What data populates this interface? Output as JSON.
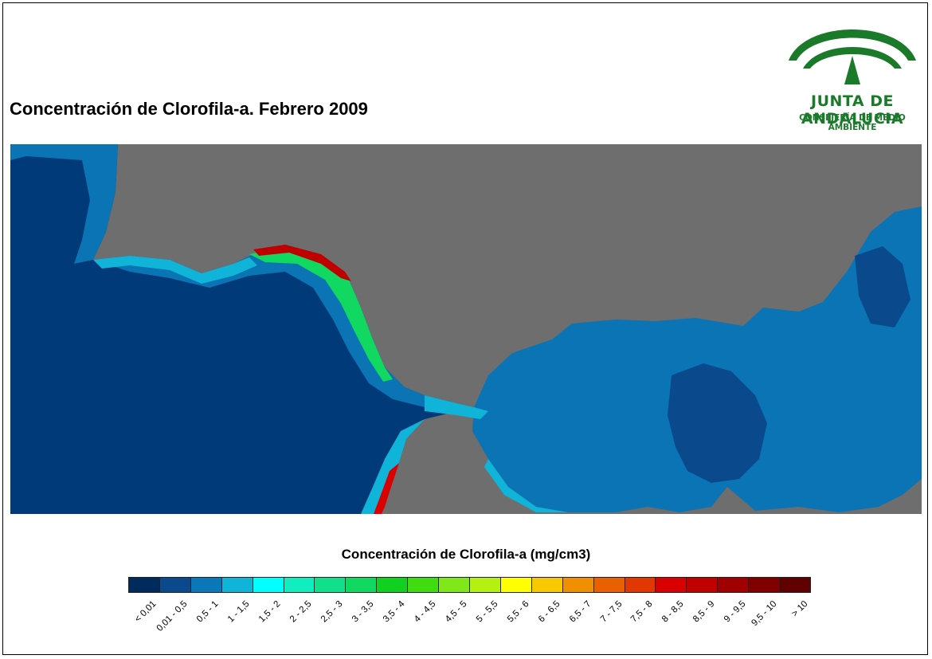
{
  "title": "Concentración de Clorofila-a. Febrero 2009",
  "logo": {
    "line1": "JUNTA DE ANDALUCIA",
    "line2": "CONSEJERÍA DE MEDIO AMBIENTE",
    "color": "#1a7a2a"
  },
  "map": {
    "land_color": "#6e6e6e",
    "open_sea_color": "#003a78",
    "mediterranean_color": "#0a74b4"
  },
  "legend": {
    "title": "Concentración de Clorofila-a (mg/cm3)",
    "classes": [
      {
        "label": "< 0,01",
        "color": "#002b5c"
      },
      {
        "label": "0,01 - 0,5",
        "color": "#0a4a8c"
      },
      {
        "label": "0,5 - 1",
        "color": "#0a78b8"
      },
      {
        "label": "1 - 1,5",
        "color": "#10b4d8"
      },
      {
        "label": "1,5 - 2",
        "color": "#00ffff"
      },
      {
        "label": "2 - 2,5",
        "color": "#10eec0"
      },
      {
        "label": "2,5 - 3",
        "color": "#10e08c"
      },
      {
        "label": "3 - 3,5",
        "color": "#10d860"
      },
      {
        "label": "3,5 - 4",
        "color": "#10d020"
      },
      {
        "label": "4 - 4,5",
        "color": "#40dc10"
      },
      {
        "label": "4,5 - 5",
        "color": "#80e818"
      },
      {
        "label": "5 - 5,5",
        "color": "#b4f010"
      },
      {
        "label": "5,5 - 6",
        "color": "#ffff00"
      },
      {
        "label": "6 - 6,5",
        "color": "#f8c800"
      },
      {
        "label": "6,5 - 7",
        "color": "#f09000"
      },
      {
        "label": "7 - 7,5",
        "color": "#e86000"
      },
      {
        "label": "7,5 - 8",
        "color": "#e03800"
      },
      {
        "label": "8 - 8,5",
        "color": "#d80000"
      },
      {
        "label": "8,5 - 9",
        "color": "#c00000"
      },
      {
        "label": "9 - 9,5",
        "color": "#a00000"
      },
      {
        "label": "9,5 - 10",
        "color": "#800000"
      },
      {
        "label": "> 10",
        "color": "#600000"
      }
    ]
  }
}
